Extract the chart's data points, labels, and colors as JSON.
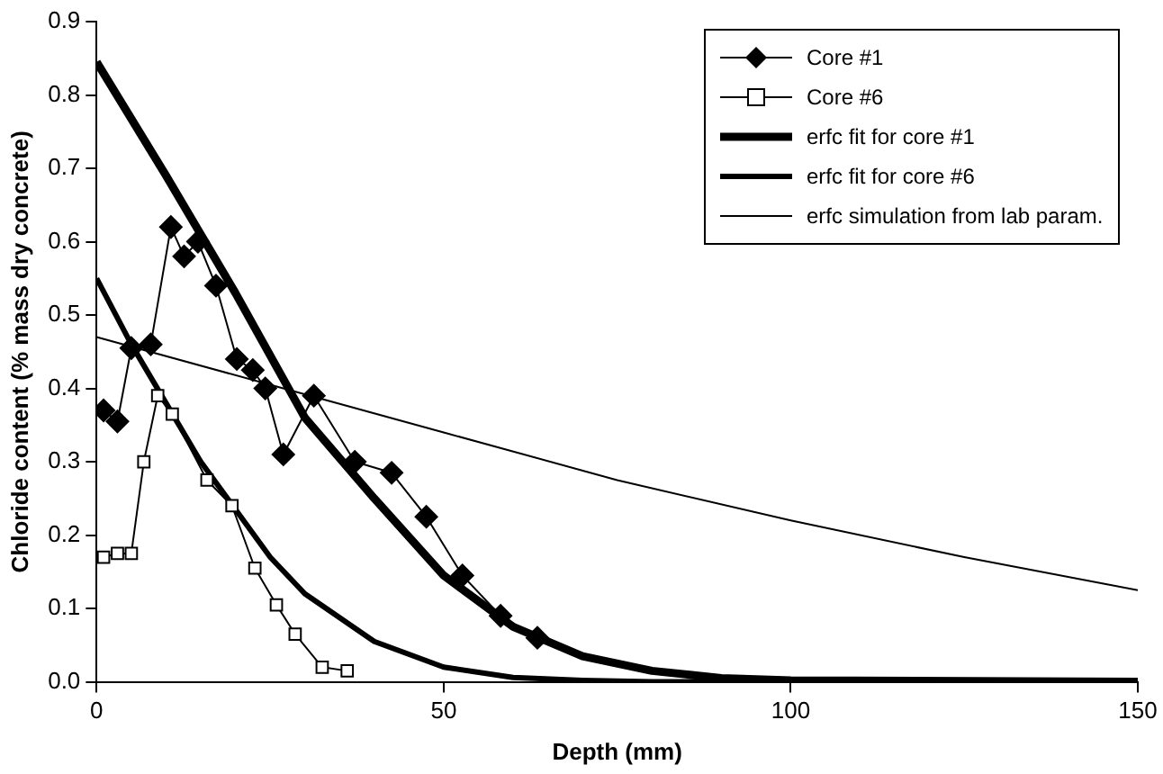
{
  "chart_data": {
    "type": "line",
    "xlabel": "Depth (mm)",
    "ylabel": "Chloride content (% mass dry concrete)",
    "xlim": [
      0,
      150
    ],
    "xticks": [
      0,
      50,
      100,
      150
    ],
    "ylim": [
      0,
      0.9
    ],
    "yticks": [
      {
        "value": 0,
        "label": "0.0"
      },
      {
        "value": 0.1,
        "label": "0.1"
      },
      {
        "value": 0.2,
        "label": "0.2"
      },
      {
        "value": 0.3,
        "label": "0.3"
      },
      {
        "value": 0.4,
        "label": "0.4"
      },
      {
        "value": 0.5,
        "label": "0.5"
      },
      {
        "value": 0.6,
        "label": "0.6"
      },
      {
        "value": 0.7,
        "label": "0.7"
      },
      {
        "value": 0.8,
        "label": "0.8"
      },
      {
        "value": 0.9,
        "label": "0.9"
      }
    ],
    "grid": false,
    "legend": "top right",
    "series": [
      {
        "name": "Core #1",
        "color": "#000000",
        "marker": "diamond",
        "x": [
          1,
          3,
          5,
          7.8,
          10.7,
          12.6,
          14.6,
          17.2,
          20.2,
          22.5,
          24.3,
          26.9,
          31.3,
          37.2,
          42.5,
          47.5,
          52.7,
          58.2,
          63.5
        ],
        "values": [
          0.37,
          0.355,
          0.455,
          0.46,
          0.62,
          0.58,
          0.6,
          0.54,
          0.44,
          0.425,
          0.4,
          0.31,
          0.39,
          0.3,
          0.285,
          0.225,
          0.145,
          0.09,
          0.06
        ]
      },
      {
        "name": "Core #6",
        "color": "#000000",
        "marker": "square",
        "x": [
          1,
          3,
          5,
          6.8,
          8.8,
          10.9,
          15.9,
          19.5,
          22.8,
          25.9,
          28.6,
          32.5,
          36.1
        ],
        "values": [
          0.17,
          0.175,
          0.175,
          0.3,
          0.39,
          0.365,
          0.275,
          0.24,
          0.155,
          0.105,
          0.065,
          0.02,
          0.015
        ]
      },
      {
        "name": "erfc fit for core #1",
        "color": "#000000",
        "marker": "none",
        "x": [
          0,
          10,
          20,
          30,
          40,
          50,
          60,
          70,
          80,
          90,
          100,
          150
        ],
        "values": [
          0.845,
          0.69,
          0.53,
          0.36,
          0.25,
          0.145,
          0.075,
          0.035,
          0.015,
          0.005,
          0.002,
          0
        ]
      },
      {
        "name": "erfc fit for core #6",
        "color": "#000000",
        "marker": "none",
        "x": [
          0,
          5,
          10,
          15,
          20,
          25,
          30,
          40,
          50,
          60,
          70,
          80,
          150
        ],
        "values": [
          0.55,
          0.46,
          0.38,
          0.3,
          0.235,
          0.17,
          0.12,
          0.055,
          0.02,
          0.006,
          0.002,
          0,
          0
        ]
      },
      {
        "name": "erfc simulation from lab param.",
        "color": "#000000",
        "marker": "none",
        "x": [
          0,
          25,
          50,
          75,
          100,
          125,
          150
        ],
        "values": [
          0.47,
          0.405,
          0.34,
          0.275,
          0.22,
          0.17,
          0.125
        ]
      }
    ]
  }
}
